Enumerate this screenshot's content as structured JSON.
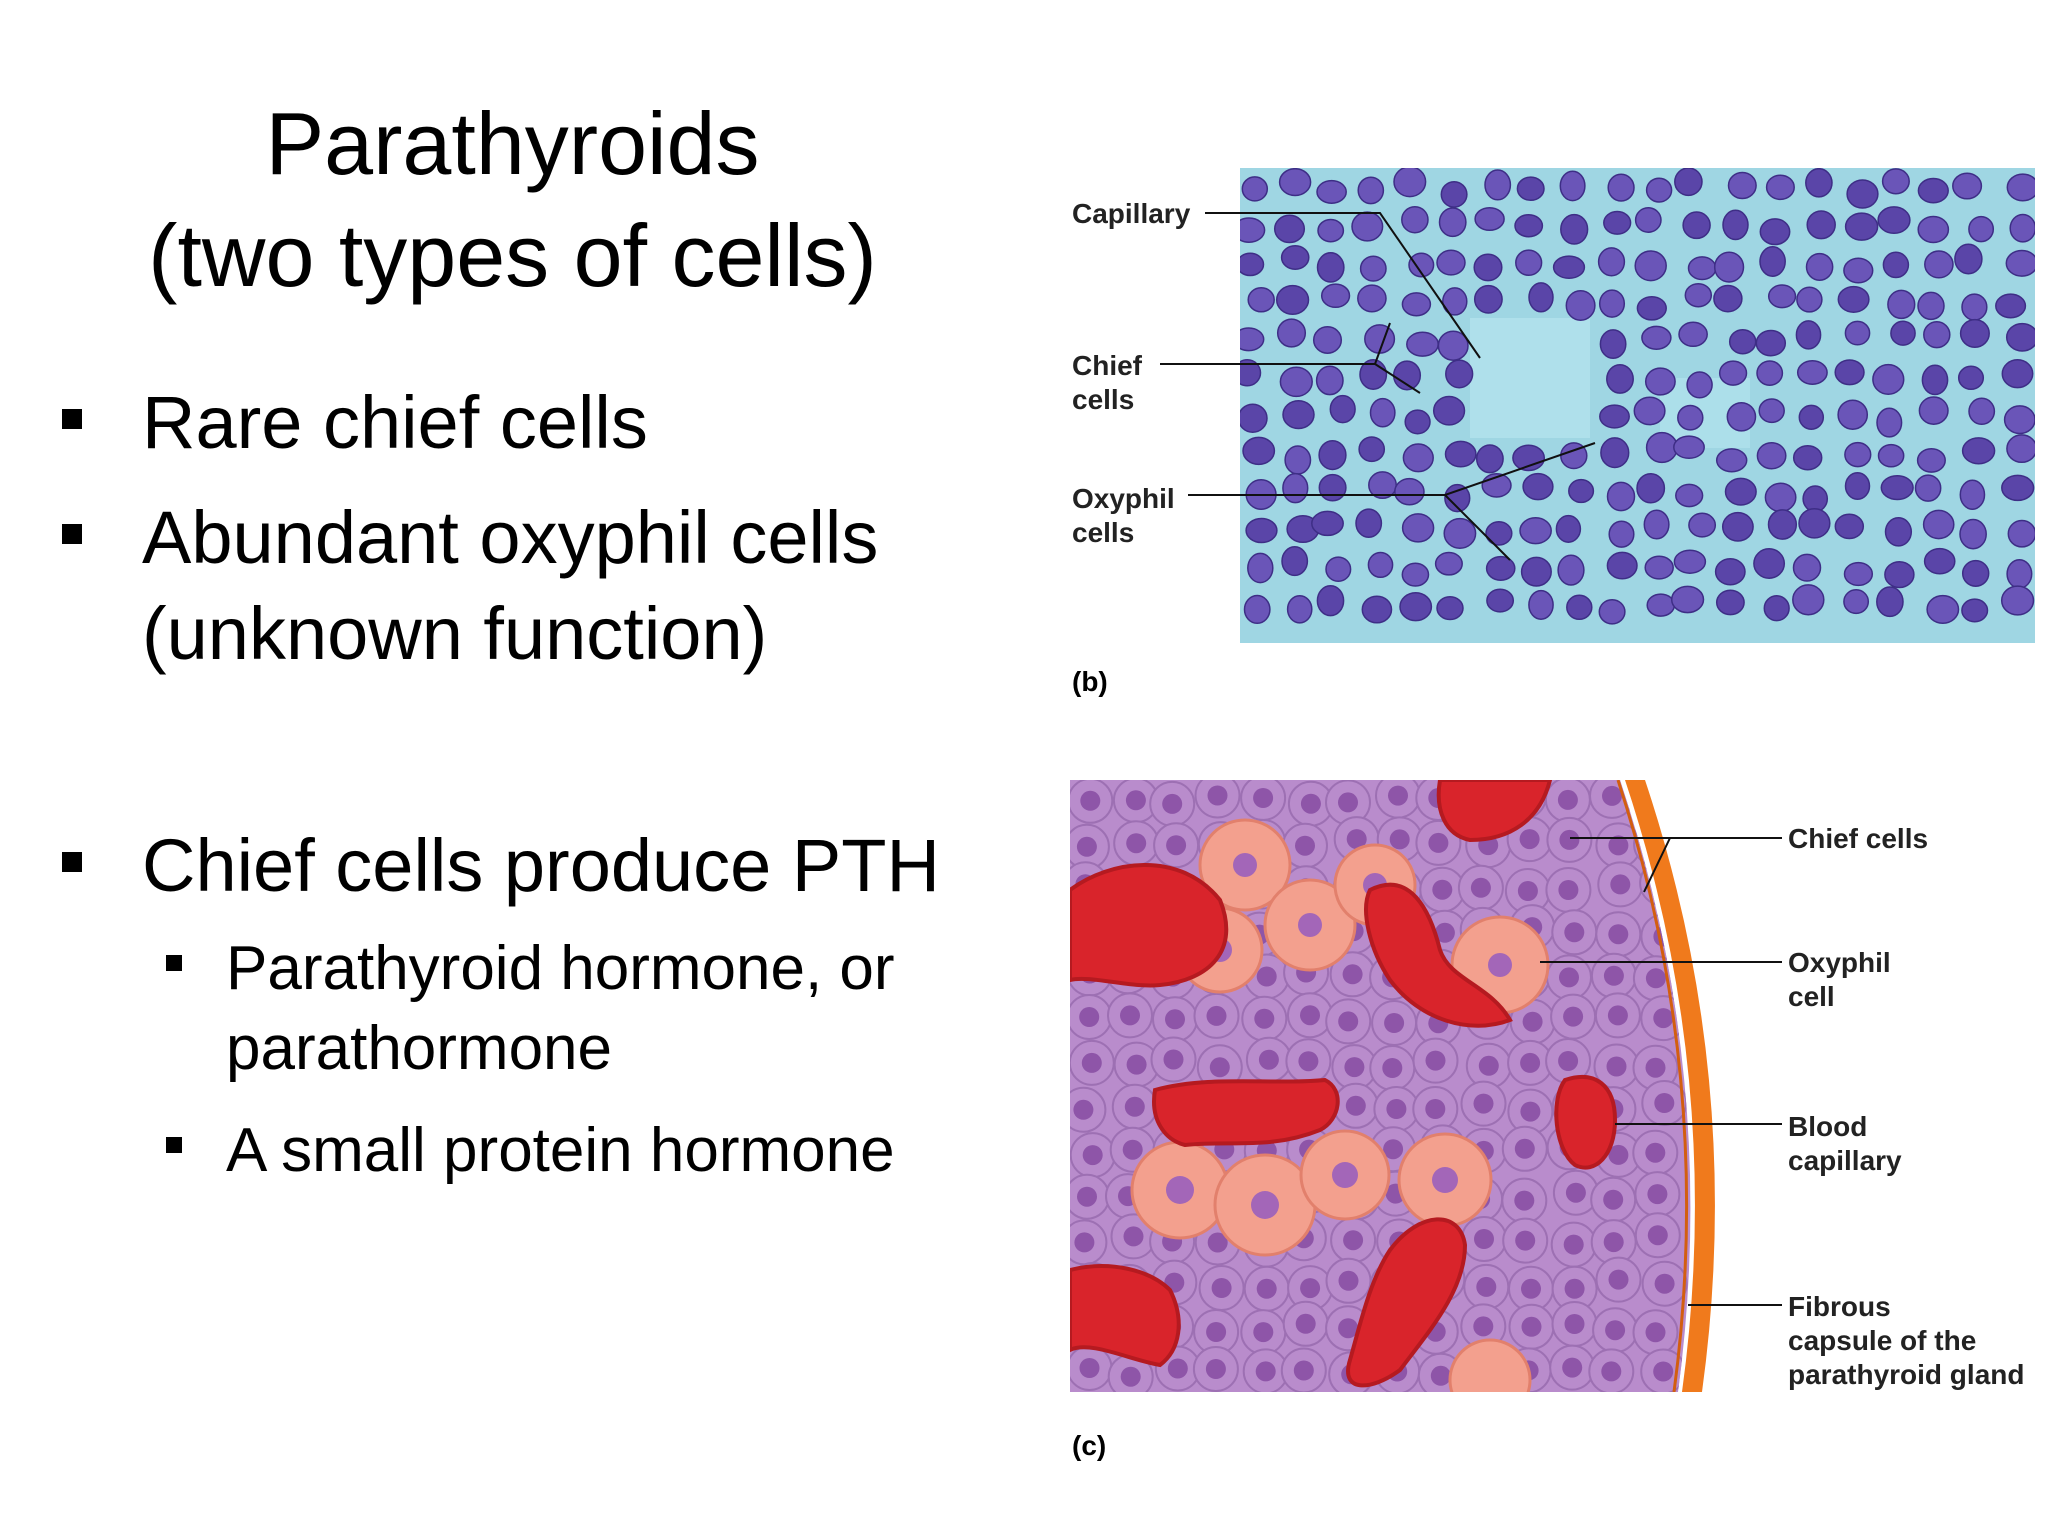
{
  "slide": {
    "title_line1": "Parathyroids",
    "title_line2": "(two types of cells)",
    "bullets": [
      {
        "text_line1": "Rare chief cells"
      },
      {
        "text_line1": "Abundant oxyphil cells",
        "text_line2": "(unknown function)"
      },
      {
        "text_line1": "Chief cells produce PTH"
      }
    ],
    "sub_bullets": [
      {
        "text_line1": "Parathyroid hormone, or",
        "text_line2": "parathormone"
      },
      {
        "text_line1": "A small protein hormone"
      }
    ]
  },
  "figure_b": {
    "label_capillary": "Capillary",
    "label_chief_1": "Chief",
    "label_chief_2": "cells",
    "label_oxyphil_1": "Oxyphil",
    "label_oxyphil_2": "cells",
    "caption": "(b)",
    "colors": {
      "background": "#9fd6e3",
      "nucleus": "#5a45a8"
    }
  },
  "figure_c": {
    "label_chief": "Chief cells",
    "label_oxyphil_1": "Oxyphil",
    "label_oxyphil_2": "cell",
    "label_blood_1": "Blood",
    "label_blood_2": "capillary",
    "label_fibrous_1": "Fibrous",
    "label_fibrous_2": "capsule of the",
    "label_fibrous_3": "parathyroid gland",
    "caption": "(c)",
    "colors": {
      "chief": "#b98ccc",
      "oxyphil": "#f3a08e",
      "blood": "#d9242b",
      "capsule": "#f07a1c"
    }
  }
}
